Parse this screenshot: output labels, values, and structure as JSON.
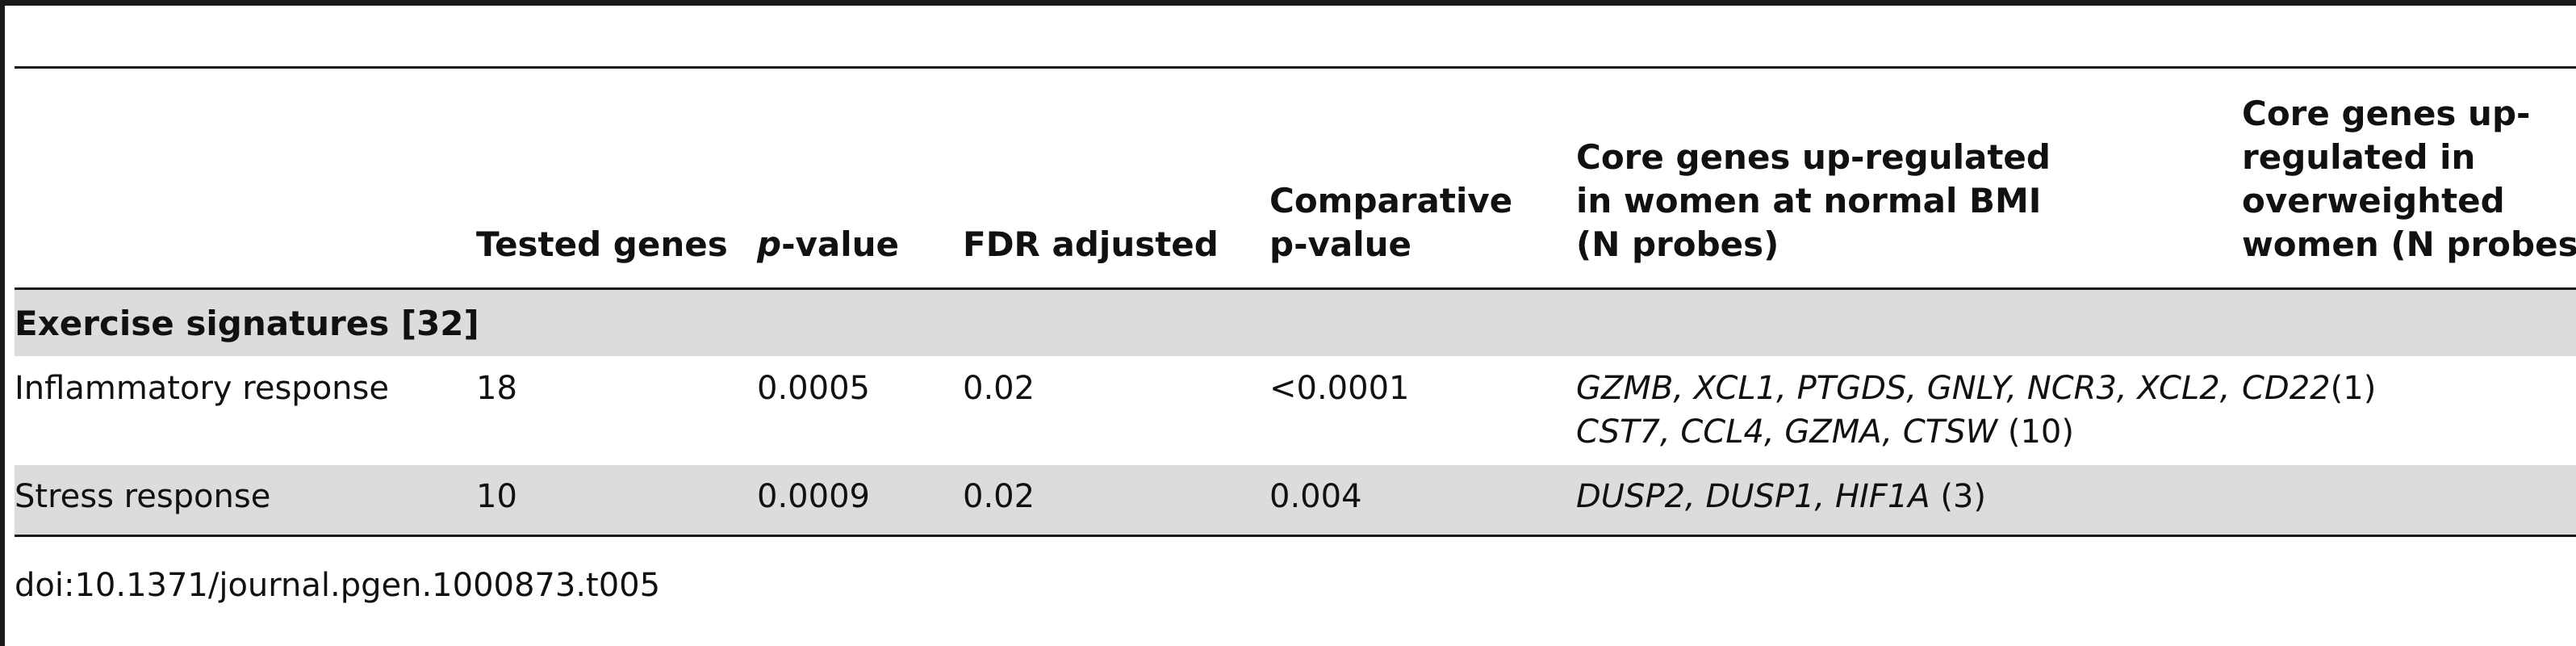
{
  "table": {
    "headers": {
      "tested_genes": "Tested genes",
      "p_value_italic": "p",
      "p_value_rest": "-value",
      "fdr": "FDR adjusted",
      "comparative_l1": "Comparative",
      "comparative_l2": "p-value",
      "core_normal_l1": "Core genes up-regulated",
      "core_normal_l2": "in women at normal BMI",
      "core_normal_l3": "(N probes)",
      "core_over_l1": "Core genes up-",
      "core_over_l2": "regulated in",
      "core_over_l3": "overweighted",
      "core_over_l4": "women (N probes)"
    },
    "section_label": "Exercise signatures [32]",
    "rows": [
      {
        "name": "Inflammatory response",
        "tested": "18",
        "p": "0.0005",
        "fdr": "0.02",
        "comparative": "<0.0001",
        "normal_genes_l1": "GZMB, XCL1, PTGDS, GNLY, NCR3, XCL2,",
        "normal_genes_l2": "CST7, CCL4, GZMA, CTSW",
        "normal_count": " (10)",
        "over_genes": "CD22",
        "over_count": "(1)"
      },
      {
        "name": "Stress response",
        "tested": "10",
        "p": "0.0009",
        "fdr": "0.02",
        "comparative": "0.004",
        "normal_genes_l1": "DUSP2, DUSP1, HIF1A",
        "normal_count": " (3)"
      }
    ]
  },
  "doi": "doi:10.1371/journal.pgen.1000873.t005"
}
